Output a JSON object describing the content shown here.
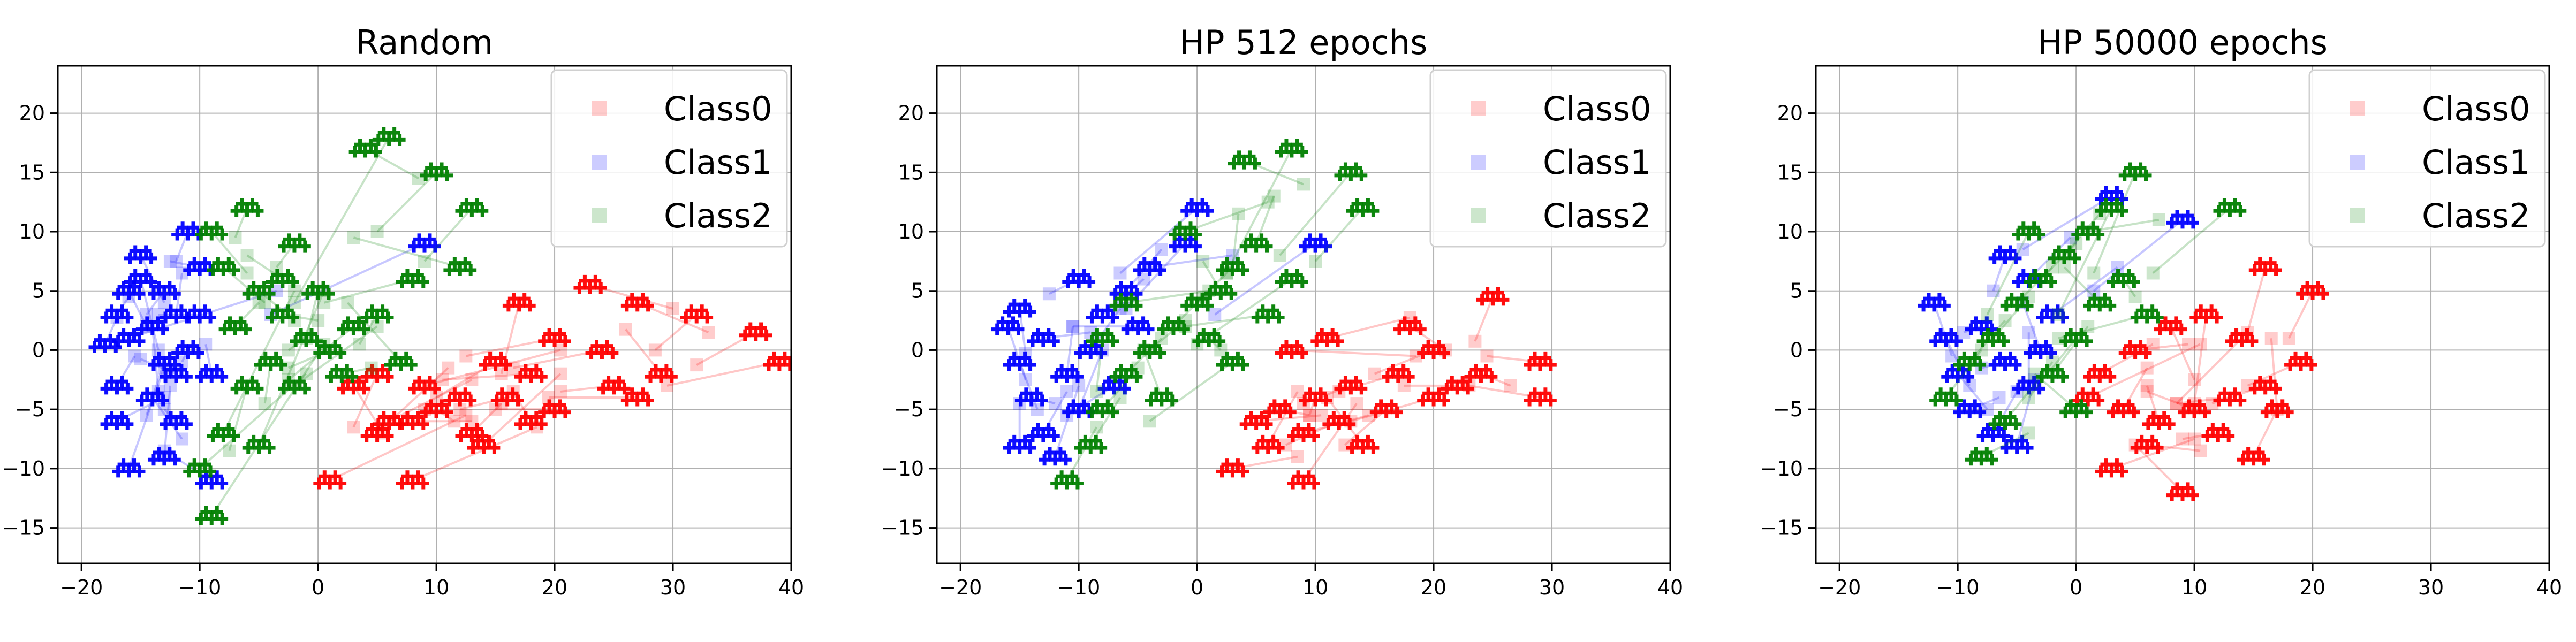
{
  "figure": {
    "colors": {
      "Class0": "#ff0000",
      "Class1": "#0000ff",
      "Class2": "#008000"
    }
  },
  "chart_data": [
    {
      "type": "scatter",
      "title": "Random",
      "xlabel": "",
      "ylabel": "",
      "xlim": [
        -22,
        40
      ],
      "ylim": [
        -18,
        24
      ],
      "xticks": [
        -20,
        -10,
        0,
        10,
        20,
        30,
        40
      ],
      "yticks": [
        -15,
        -10,
        -5,
        0,
        5,
        10,
        15,
        20
      ],
      "grid": true,
      "legend_position": "top-right",
      "legend": [
        "Class0",
        "Class1",
        "Class2"
      ],
      "series": [
        {
          "name": "Class0",
          "color": "#ff0000",
          "points": [
            [
              23,
              5.5
            ],
            [
              27,
              4
            ],
            [
              32,
              3
            ],
            [
              37,
              1.5
            ],
            [
              39,
              -1
            ],
            [
              25,
              -3
            ],
            [
              27,
              -4
            ],
            [
              20,
              -5
            ],
            [
              16,
              -4
            ],
            [
              12,
              -4
            ],
            [
              10,
              -5
            ],
            [
              8,
              -6
            ],
            [
              6,
              -6
            ],
            [
              13,
              -7
            ],
            [
              18,
              -6
            ],
            [
              20,
              1
            ],
            [
              18,
              -2
            ],
            [
              15,
              -1
            ],
            [
              5,
              -2
            ],
            [
              3,
              -3
            ],
            [
              5,
              -7
            ],
            [
              1,
              -11
            ],
            [
              8,
              -11
            ],
            [
              17,
              4
            ],
            [
              24,
              0
            ],
            [
              29,
              -2
            ],
            [
              14,
              -8
            ],
            [
              9,
              -3
            ]
          ]
        },
        {
          "name": "Class1",
          "color": "#0000ff",
          "points": [
            [
              -18,
              0.5
            ],
            [
              -17,
              3
            ],
            [
              -17,
              -3
            ],
            [
              -16,
              5
            ],
            [
              -15,
              6
            ],
            [
              -14,
              2
            ],
            [
              -13,
              -1
            ],
            [
              -12,
              -6
            ],
            [
              -13,
              -9
            ],
            [
              -16,
              -10
            ],
            [
              -14,
              -4
            ],
            [
              -12,
              3
            ],
            [
              -10,
              7
            ],
            [
              -9,
              -11
            ],
            [
              -11,
              10
            ],
            [
              -15,
              8
            ],
            [
              -17,
              -6
            ],
            [
              -13,
              5
            ],
            [
              -11,
              0
            ],
            [
              -9,
              -2
            ],
            [
              -16,
              1
            ],
            [
              -12,
              -2
            ],
            [
              -10,
              3
            ],
            [
              9,
              9
            ]
          ]
        },
        {
          "name": "Class2",
          "color": "#008000",
          "points": [
            [
              -6,
              12
            ],
            [
              -2,
              9
            ],
            [
              -9,
              10
            ],
            [
              -8,
              7
            ],
            [
              -5,
              5
            ],
            [
              -3,
              3
            ],
            [
              -1,
              1
            ],
            [
              1,
              0
            ],
            [
              3,
              2
            ],
            [
              -4,
              -1
            ],
            [
              -6,
              -3
            ],
            [
              -8,
              -7
            ],
            [
              -5,
              -8
            ],
            [
              -9,
              -14
            ],
            [
              4,
              17
            ],
            [
              6,
              18
            ],
            [
              10,
              15
            ],
            [
              13,
              12
            ],
            [
              -10,
              -10
            ],
            [
              0,
              5
            ],
            [
              5,
              3
            ],
            [
              8,
              6
            ],
            [
              -2,
              -3
            ],
            [
              2,
              -2
            ],
            [
              -7,
              2
            ],
            [
              12,
              7
            ],
            [
              7,
              -1
            ],
            [
              -3,
              6
            ]
          ]
        }
      ]
    },
    {
      "type": "scatter",
      "title": "HP 512 epochs",
      "xlabel": "",
      "ylabel": "",
      "xlim": [
        -22,
        40
      ],
      "ylim": [
        -18,
        24
      ],
      "xticks": [
        -20,
        -10,
        0,
        10,
        20,
        30,
        40
      ],
      "yticks": [
        -15,
        -10,
        -5,
        0,
        5,
        10,
        15,
        20
      ],
      "grid": true,
      "legend_position": "top-right",
      "legend": [
        "Class0",
        "Class1",
        "Class2"
      ],
      "series": [
        {
          "name": "Class0",
          "color": "#ff0000",
          "points": [
            [
              25,
              4.5
            ],
            [
              29,
              -1
            ],
            [
              29,
              -4
            ],
            [
              22,
              -3
            ],
            [
              20,
              0
            ],
            [
              17,
              -2
            ],
            [
              13,
              -3
            ],
            [
              10,
              -4
            ],
            [
              7,
              -5
            ],
            [
              5,
              -6
            ],
            [
              9,
              -7
            ],
            [
              12,
              -6
            ],
            [
              16,
              -5
            ],
            [
              20,
              -4
            ],
            [
              3,
              -10
            ],
            [
              9,
              -11
            ],
            [
              6,
              -8
            ],
            [
              14,
              -8
            ],
            [
              18,
              2
            ],
            [
              11,
              1
            ],
            [
              8,
              0
            ],
            [
              24,
              -2
            ]
          ]
        },
        {
          "name": "Class1",
          "color": "#0000ff",
          "points": [
            [
              -15,
              3.5
            ],
            [
              -16,
              2
            ],
            [
              -15,
              -1
            ],
            [
              -14,
              -4
            ],
            [
              -13,
              -7
            ],
            [
              -12,
              -9
            ],
            [
              -10,
              -5
            ],
            [
              -9,
              0
            ],
            [
              -8,
              3
            ],
            [
              -6,
              5
            ],
            [
              -4,
              7
            ],
            [
              -1,
              9
            ],
            [
              0,
              12
            ],
            [
              10,
              9
            ],
            [
              -11,
              -2
            ],
            [
              -13,
              1
            ],
            [
              -7,
              -3
            ],
            [
              -10,
              6
            ],
            [
              -5,
              2
            ],
            [
              -15,
              -8
            ]
          ]
        },
        {
          "name": "Class2",
          "color": "#008000",
          "points": [
            [
              -11,
              -11
            ],
            [
              -9,
              -8
            ],
            [
              -8,
              -5
            ],
            [
              -6,
              -2
            ],
            [
              -4,
              0
            ],
            [
              -2,
              2
            ],
            [
              0,
              4
            ],
            [
              2,
              5
            ],
            [
              3,
              7
            ],
            [
              5,
              9
            ],
            [
              -1,
              10
            ],
            [
              4,
              16
            ],
            [
              8,
              17
            ],
            [
              13,
              15
            ],
            [
              14,
              12
            ],
            [
              -3,
              -4
            ],
            [
              1,
              1
            ],
            [
              6,
              3
            ],
            [
              -6,
              4
            ],
            [
              3,
              -1
            ],
            [
              -8,
              1
            ],
            [
              8,
              6
            ]
          ]
        }
      ]
    },
    {
      "type": "scatter",
      "title": "HP 50000 epochs",
      "xlabel": "",
      "ylabel": "",
      "xlim": [
        -22,
        40
      ],
      "ylim": [
        -18,
        24
      ],
      "xticks": [
        -20,
        -10,
        0,
        10,
        20,
        30,
        40
      ],
      "yticks": [
        -15,
        -10,
        -5,
        0,
        5,
        10,
        15,
        20
      ],
      "grid": true,
      "legend_position": "top-right",
      "legend": [
        "Class0",
        "Class1",
        "Class2"
      ],
      "series": [
        {
          "name": "Class0",
          "color": "#ff0000",
          "points": [
            [
              20,
              5
            ],
            [
              16,
              7
            ],
            [
              19,
              -1
            ],
            [
              16,
              -3
            ],
            [
              13,
              -4
            ],
            [
              10,
              -5
            ],
            [
              7,
              -6
            ],
            [
              4,
              -5
            ],
            [
              2,
              -2
            ],
            [
              5,
              0
            ],
            [
              8,
              2
            ],
            [
              11,
              3
            ],
            [
              14,
              1
            ],
            [
              12,
              -7
            ],
            [
              9,
              -12
            ],
            [
              3,
              -10
            ],
            [
              6,
              -8
            ],
            [
              1,
              -4
            ],
            [
              17,
              -5
            ],
            [
              15,
              -9
            ]
          ]
        },
        {
          "name": "Class1",
          "color": "#0000ff",
          "points": [
            [
              -12,
              4
            ],
            [
              -11,
              1
            ],
            [
              -10,
              -2
            ],
            [
              -9,
              -5
            ],
            [
              -7,
              -7
            ],
            [
              -5,
              -8
            ],
            [
              -4,
              -3
            ],
            [
              -3,
              0
            ],
            [
              -2,
              3
            ],
            [
              -4,
              6
            ],
            [
              -6,
              8
            ],
            [
              9,
              11
            ],
            [
              3,
              13
            ],
            [
              -8,
              2
            ],
            [
              -6,
              -1
            ]
          ]
        },
        {
          "name": "Class2",
          "color": "#008000",
          "points": [
            [
              -11,
              -4
            ],
            [
              -9,
              -1
            ],
            [
              -7,
              1
            ],
            [
              -5,
              4
            ],
            [
              -3,
              6
            ],
            [
              -1,
              8
            ],
            [
              1,
              10
            ],
            [
              3,
              12
            ],
            [
              5,
              15
            ],
            [
              13,
              12
            ],
            [
              -6,
              -6
            ],
            [
              -2,
              -2
            ],
            [
              0,
              1
            ],
            [
              2,
              4
            ],
            [
              4,
              6
            ],
            [
              -8,
              -9
            ],
            [
              -4,
              10
            ],
            [
              6,
              3
            ],
            [
              0,
              -5
            ]
          ]
        }
      ]
    }
  ]
}
